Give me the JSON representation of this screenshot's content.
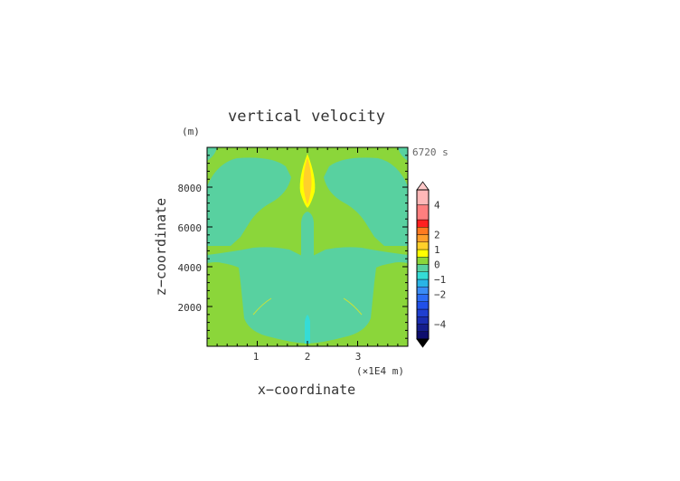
{
  "chart_data": {
    "type": "heatmap",
    "title": "vertical velocity",
    "xlabel": "x−coordinate",
    "ylabel": "z−coordinate",
    "y_unit": "(m)",
    "x_unit": "(×1E4 m)",
    "time_label": "6720 s",
    "xlim": [
      0,
      4
    ],
    "ylim": [
      0,
      10000
    ],
    "x_ticks": [
      1,
      2,
      3
    ],
    "x_tick_labels": [
      "1",
      "2",
      "3"
    ],
    "y_ticks": [
      2000,
      4000,
      6000,
      8000
    ],
    "y_tick_labels": [
      "2000",
      "4000",
      "6000",
      "8000"
    ],
    "colorbar": {
      "levels": [
        -5,
        -4.5,
        -4,
        -3.5,
        -3,
        -2.5,
        -2,
        -1.5,
        -1,
        -0.5,
        0,
        0.5,
        1,
        1.5,
        2,
        2.5,
        3,
        4,
        5
      ],
      "colors": [
        "#0d0d6e",
        "#141d8c",
        "#1a2db0",
        "#1f3fd0",
        "#2050e8",
        "#2b6cf5",
        "#3a8cf5",
        "#2ab4e6",
        "#35dcd6",
        "#58d1a0",
        "#8bd63a",
        "#ffff00",
        "#ffd02a",
        "#ff9f2a",
        "#ff7a20",
        "#ff2020",
        "#ff7f7f",
        "#ffb8b8"
      ],
      "over_color": "#ffc9c9",
      "under_color": "#000000",
      "tick_values": [
        4,
        2,
        1,
        0,
        -1,
        -2,
        -4
      ],
      "tick_labels": [
        "4",
        "2",
        "1",
        "0",
        "−1",
        "−2",
        "−4"
      ]
    },
    "regions": [
      {
        "name": "background",
        "value": 0.25
      },
      {
        "name": "upper-left-blob",
        "value": -0.25
      },
      {
        "name": "upper-right-blob",
        "value": -0.25
      },
      {
        "name": "central-column",
        "value": -0.25
      },
      {
        "name": "lower-body",
        "value": -0.25
      },
      {
        "name": "top-left-corner",
        "value": -0.25
      },
      {
        "name": "top-right-corner",
        "value": -0.25
      },
      {
        "name": "upper-core-light",
        "value": 0.75
      },
      {
        "name": "upper-core",
        "value": 1.25
      },
      {
        "name": "lower-core",
        "value": -0.75
      }
    ]
  }
}
